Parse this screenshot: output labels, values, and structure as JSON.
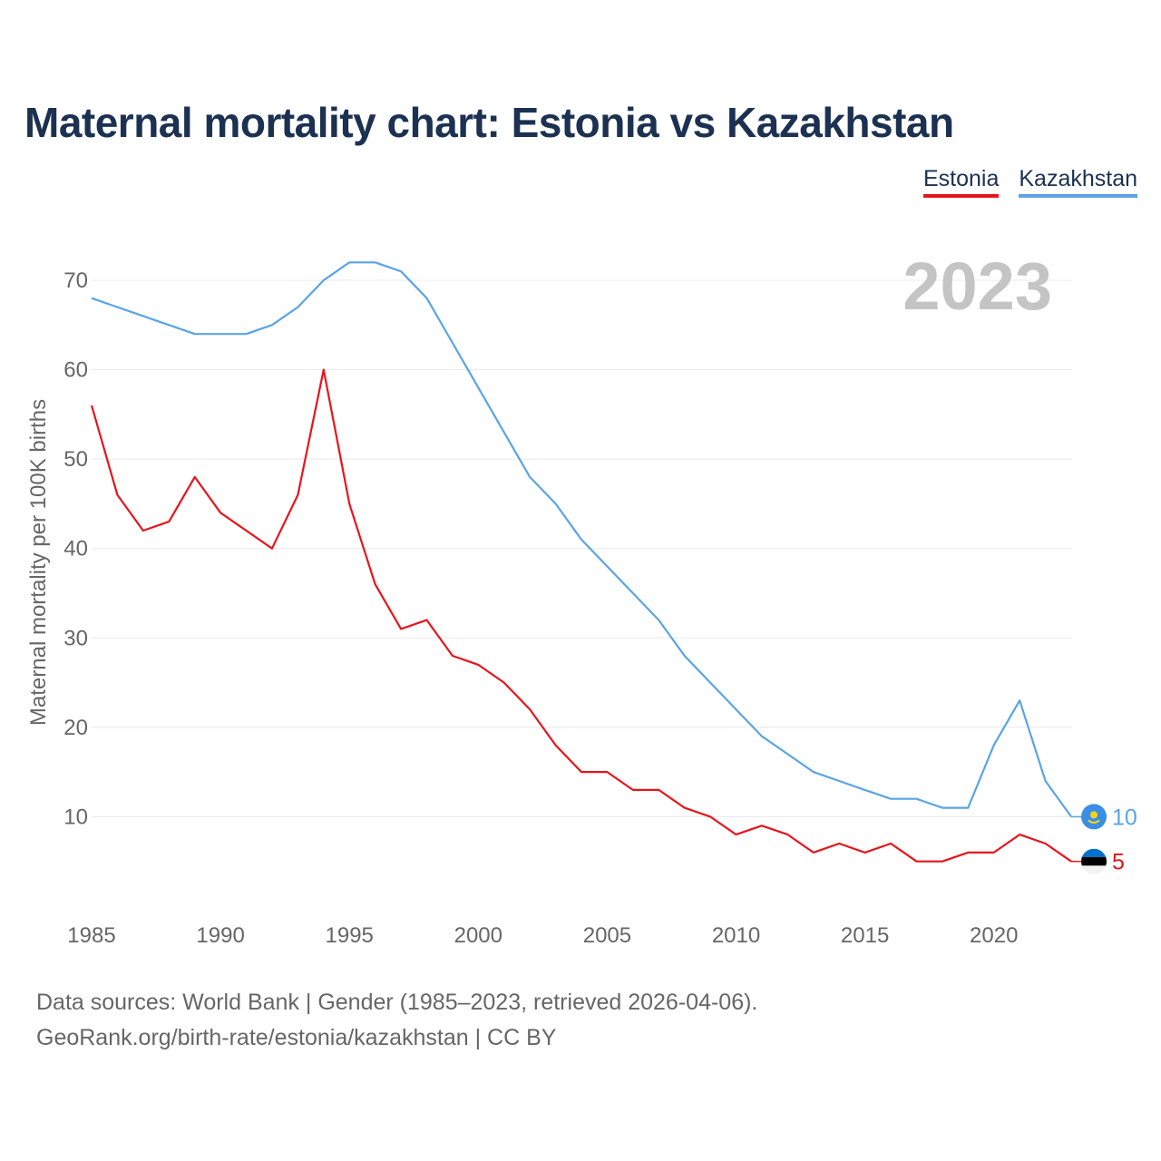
{
  "chart_data": {
    "type": "line",
    "title": "Maternal mortality chart: Estonia vs Kazakhstan",
    "ylabel": "Maternal mortality per 100K births",
    "xlabel": "",
    "year_label": "2023",
    "xlim": [
      1985,
      2023
    ],
    "ylim": [
      0,
      72
    ],
    "x_ticks": [
      1985,
      1990,
      1995,
      2000,
      2005,
      2010,
      2015,
      2020
    ],
    "y_ticks": [
      10,
      20,
      30,
      40,
      50,
      60,
      70
    ],
    "grid": true,
    "legend_position": "top-right",
    "x": [
      1985,
      1986,
      1987,
      1988,
      1989,
      1990,
      1991,
      1992,
      1993,
      1994,
      1995,
      1996,
      1997,
      1998,
      1999,
      2000,
      2001,
      2002,
      2003,
      2004,
      2005,
      2006,
      2007,
      2008,
      2009,
      2010,
      2011,
      2012,
      2013,
      2014,
      2015,
      2016,
      2017,
      2018,
      2019,
      2020,
      2021,
      2022,
      2023
    ],
    "series": [
      {
        "name": "Estonia",
        "color": "#e8141b",
        "end_label": "5",
        "flag_icon": "estonia-flag-icon",
        "values": [
          56,
          46,
          42,
          43,
          48,
          44,
          42,
          40,
          46,
          60,
          45,
          36,
          31,
          32,
          28,
          27,
          25,
          22,
          18,
          15,
          15,
          13,
          13,
          11,
          10,
          8,
          9,
          8,
          6,
          7,
          6,
          7,
          5,
          5,
          6,
          6,
          8,
          7,
          5
        ]
      },
      {
        "name": "Kazakhstan",
        "color": "#5aa4e6",
        "end_label": "10",
        "flag_icon": "kazakhstan-flag-icon",
        "values": [
          68,
          67,
          66,
          65,
          64,
          64,
          64,
          65,
          67,
          70,
          72,
          72,
          71,
          68,
          63,
          58,
          53,
          48,
          45,
          41,
          38,
          35,
          32,
          28,
          25,
          22,
          19,
          17,
          15,
          14,
          13,
          12,
          12,
          11,
          11,
          18,
          23,
          14,
          10
        ]
      }
    ]
  },
  "footer": {
    "line1": "Data sources: World Bank | Gender (1985–2023, retrieved 2026-04-06).",
    "line2": "GeoRank.org/birth-rate/estonia/kazakhstan | CC BY"
  }
}
